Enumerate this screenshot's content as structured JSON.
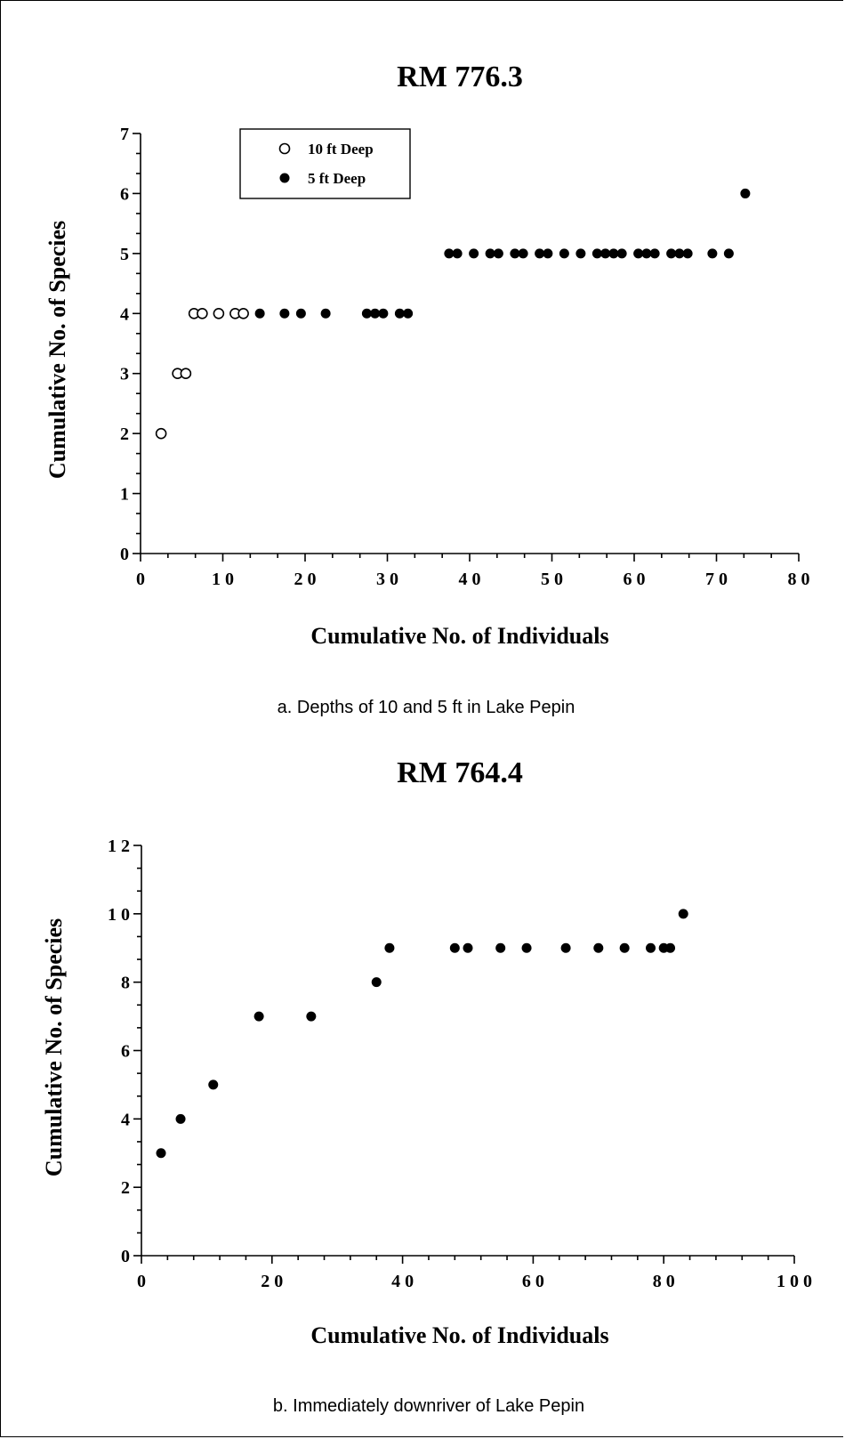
{
  "chart_data": [
    {
      "type": "scatter",
      "title": "RM 776.3",
      "xlabel": "Cumulative No. of Individuals",
      "ylabel": "Cumulative No. of Species",
      "caption": "a.  Depths of 10 and 5 ft in Lake Pepin",
      "xlim": [
        0,
        80
      ],
      "ylim": [
        0,
        7
      ],
      "x_ticks": [
        0,
        10,
        20,
        30,
        40,
        50,
        60,
        70,
        80
      ],
      "x_tick_labels": [
        "0",
        "1 0",
        "2 0",
        "3 0",
        "4 0",
        "5 0",
        "6 0",
        "7 0",
        "8 0"
      ],
      "y_ticks": [
        0,
        1,
        2,
        3,
        4,
        5,
        6,
        7
      ],
      "y_tick_labels": [
        "0",
        "1",
        "2",
        "3",
        "4",
        "5",
        "6",
        "7"
      ],
      "grid": false,
      "legend_position": "top-left",
      "series": [
        {
          "name": "10 ft Deep",
          "marker": "open-circle",
          "points": [
            [
              2.5,
              2
            ],
            [
              4.5,
              3
            ],
            [
              5.5,
              3
            ],
            [
              6.5,
              4
            ],
            [
              7.5,
              4
            ],
            [
              9.5,
              4
            ],
            [
              11.5,
              4
            ],
            [
              12.5,
              4
            ]
          ]
        },
        {
          "name": "5 ft Deep",
          "marker": "filled-circle",
          "points": [
            [
              14.5,
              4
            ],
            [
              17.5,
              4
            ],
            [
              19.5,
              4
            ],
            [
              22.5,
              4
            ],
            [
              27.5,
              4
            ],
            [
              28.5,
              4
            ],
            [
              29.5,
              4
            ],
            [
              31.5,
              4
            ],
            [
              32.5,
              4
            ],
            [
              37.5,
              5
            ],
            [
              38.5,
              5
            ],
            [
              40.5,
              5
            ],
            [
              42.5,
              5
            ],
            [
              43.5,
              5
            ],
            [
              45.5,
              5
            ],
            [
              46.5,
              5
            ],
            [
              48.5,
              5
            ],
            [
              49.5,
              5
            ],
            [
              51.5,
              5
            ],
            [
              53.5,
              5
            ],
            [
              55.5,
              5
            ],
            [
              56.5,
              5
            ],
            [
              57.5,
              5
            ],
            [
              58.5,
              5
            ],
            [
              60.5,
              5
            ],
            [
              61.5,
              5
            ],
            [
              62.5,
              5
            ],
            [
              64.5,
              5
            ],
            [
              65.5,
              5
            ],
            [
              66.5,
              5
            ],
            [
              69.5,
              5
            ],
            [
              71.5,
              5
            ],
            [
              73.5,
              6
            ]
          ]
        }
      ]
    },
    {
      "type": "scatter",
      "title": "RM 764.4",
      "xlabel": "Cumulative No. of Individuals",
      "ylabel": "Cumulative No. of Species",
      "caption": "b.  Immediately downriver of Lake Pepin",
      "xlim": [
        0,
        100
      ],
      "ylim": [
        0,
        12
      ],
      "x_ticks": [
        0,
        20,
        40,
        60,
        80,
        100
      ],
      "x_tick_labels": [
        "0",
        "2 0",
        "4 0",
        "6 0",
        "8 0",
        "1 0 0"
      ],
      "y_ticks": [
        0,
        2,
        4,
        6,
        8,
        10,
        12
      ],
      "y_tick_labels": [
        "0",
        "2",
        "4",
        "6",
        "8",
        "1 0",
        "1 2"
      ],
      "grid": false,
      "series": [
        {
          "marker": "filled-circle",
          "points": [
            [
              3,
              3
            ],
            [
              6,
              4
            ],
            [
              11,
              5
            ],
            [
              18,
              7
            ],
            [
              26,
              7
            ],
            [
              36,
              8
            ],
            [
              38,
              9
            ],
            [
              48,
              9
            ],
            [
              50,
              9
            ],
            [
              55,
              9
            ],
            [
              59,
              9
            ],
            [
              65,
              9
            ],
            [
              70,
              9
            ],
            [
              74,
              9
            ],
            [
              78,
              9
            ],
            [
              80,
              9
            ],
            [
              81,
              9
            ],
            [
              83,
              10
            ]
          ]
        }
      ]
    }
  ]
}
